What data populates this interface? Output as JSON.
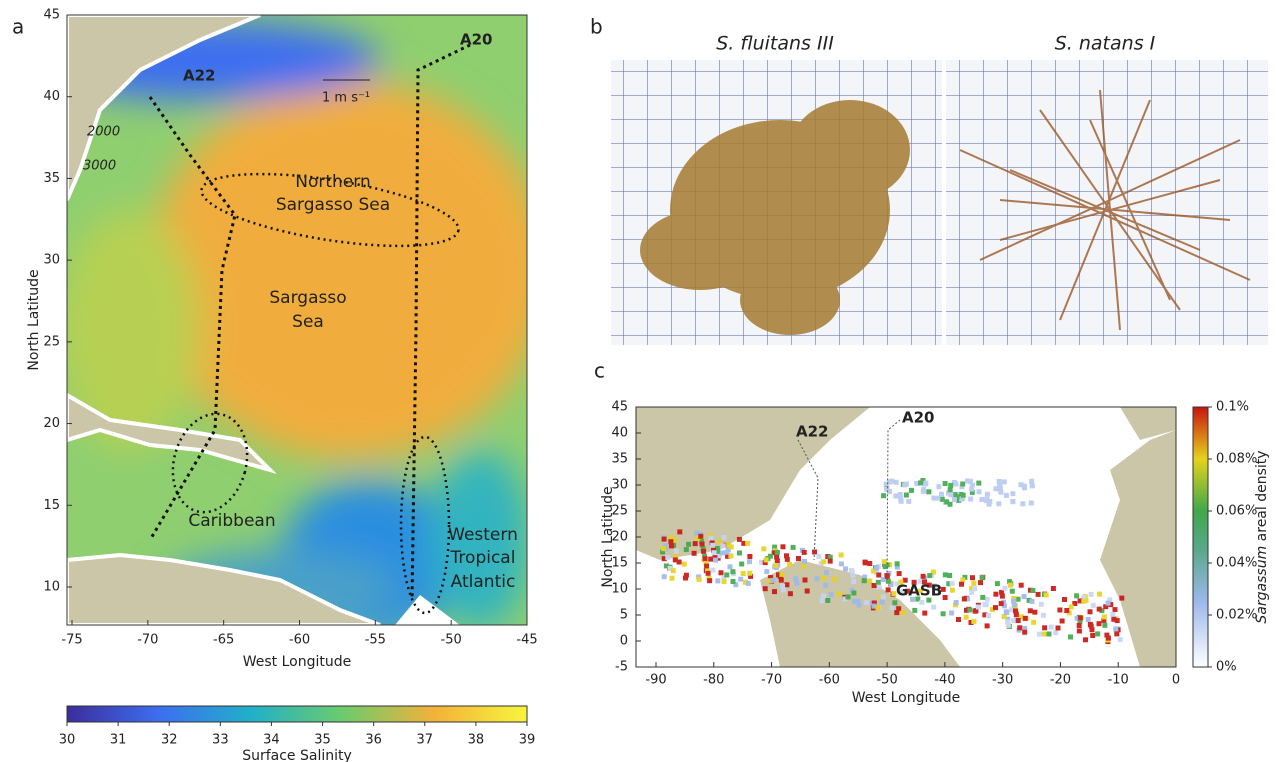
{
  "panel_a": {
    "letter": "a",
    "y_axis_label": "North Latitude",
    "x_axis_label": "West Longitude",
    "xticks": [
      "-75",
      "-70",
      "-65",
      "-60",
      "-55",
      "-50",
      "-45"
    ],
    "yticks": [
      "45",
      "40",
      "35",
      "30",
      "25",
      "20",
      "15",
      "10"
    ],
    "transects": [
      "A22",
      "A20"
    ],
    "scale": "1 m s⁻¹",
    "isobaths": [
      "2000",
      "3000"
    ],
    "regions": {
      "northern": [
        "Northern",
        "Sargasso Sea"
      ],
      "sargasso": [
        "Sargasso",
        "Sea"
      ],
      "caribbean": [
        "Caribbean"
      ],
      "western": [
        "Western",
        "Tropical",
        "Atlantic"
      ]
    },
    "colorbar": {
      "ticks": [
        "30",
        "31",
        "32",
        "33",
        "34",
        "35",
        "36",
        "37",
        "38",
        "39"
      ],
      "label": "Surface Salinity"
    }
  },
  "panel_b": {
    "letter": "b",
    "photos": [
      "S. fluitans III",
      "S. natans I"
    ]
  },
  "panel_c": {
    "letter": "c",
    "y_axis_label": "North Latitude",
    "x_axis_label": "West Longitude",
    "yticks": [
      "45",
      "40",
      "35",
      "30",
      "25",
      "20",
      "15",
      "10",
      "5",
      "0",
      "-5"
    ],
    "xticks": [
      "-90",
      "-80",
      "-70",
      "-60",
      "-50",
      "-40",
      "-30",
      "-20",
      "-10",
      "0"
    ],
    "transects": [
      "A22",
      "A20"
    ],
    "region": "GASB",
    "colorbar": {
      "ticks": [
        "0.1%",
        "0.08%",
        "0.06%",
        "0.04%",
        "0.02%",
        "0%"
      ],
      "label_italic": "Sargassum",
      "label_rest": " areal density"
    }
  }
}
